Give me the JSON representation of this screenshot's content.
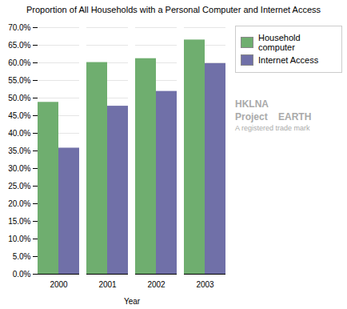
{
  "chart_data": {
    "type": "bar",
    "title": "Proportion of All Households with a Personal Computer and Internet Access",
    "categories": [
      "2000",
      "2001",
      "2002",
      "2003"
    ],
    "series": [
      {
        "name": "Household computer",
        "color": "#6FAE6F",
        "values": [
          0.488,
          0.601,
          0.612,
          0.665
        ]
      },
      {
        "name": "Internet Access",
        "color": "#7070A8",
        "values": [
          0.358,
          0.477,
          0.519,
          0.598
        ]
      }
    ],
    "xlabel": "Year",
    "ylim": [
      0.0,
      0.7
    ],
    "yticks": [
      {
        "value": 0.0,
        "label": "0.0%"
      },
      {
        "value": 0.05,
        "label": "5.0%"
      },
      {
        "value": 0.1,
        "label": "10.0%"
      },
      {
        "value": 0.15,
        "label": "15.0%"
      },
      {
        "value": 0.2,
        "label": "20.0%"
      },
      {
        "value": 0.25,
        "label": "25.0%"
      },
      {
        "value": 0.3,
        "label": "30.0%"
      },
      {
        "value": 0.35,
        "label": "35.0%"
      },
      {
        "value": 0.4,
        "label": "40.0%"
      },
      {
        "value": 0.45,
        "label": "45.0%"
      },
      {
        "value": 0.5,
        "label": "50.0%"
      },
      {
        "value": 0.55,
        "label": "55.0%"
      },
      {
        "value": 0.6,
        "label": "60.0%"
      },
      {
        "value": 0.65,
        "label": "65.0%"
      },
      {
        "value": 0.7,
        "label": "70.0%"
      }
    ],
    "grid": true,
    "legend": "upper right",
    "annotations": [
      "HKLNA",
      "Project    EARTH",
      "A registered trade mark"
    ]
  }
}
